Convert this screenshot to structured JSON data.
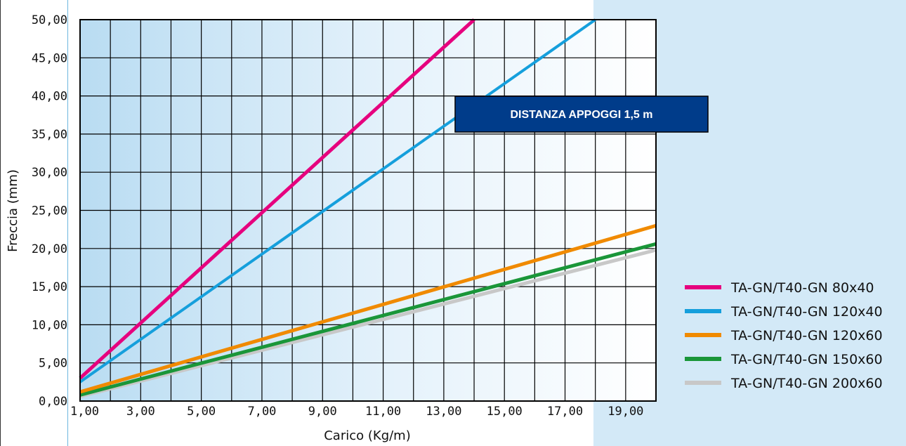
{
  "chart_data": {
    "type": "line",
    "title": "",
    "xlabel": "Carico (Kg/m)",
    "ylabel": "Freccia (mm)",
    "xlim": [
      1,
      20
    ],
    "ylim": [
      0,
      50
    ],
    "x_ticks": [
      "1,00",
      "3,00",
      "5,00",
      "7,00",
      "9,00",
      "11,00",
      "13,00",
      "15,00",
      "17,00",
      "19,00"
    ],
    "y_ticks": [
      "0,00",
      "5,00",
      "10,00",
      "15,00",
      "20,00",
      "25,00",
      "30,00",
      "35,00",
      "40,00",
      "45,00",
      "50,00"
    ],
    "grid": true,
    "legend_position": "right",
    "annotation": "DISTANZA APPOGGI 1,5 m",
    "series": [
      {
        "name": "TA-GN/T40-GN 80x40",
        "color": "#e6007e",
        "x": [
          1,
          14
        ],
        "y": [
          3.0,
          50.0
        ]
      },
      {
        "name": "TA-GN/T40-GN 120x40",
        "color": "#159fdc",
        "x": [
          1,
          18
        ],
        "y": [
          2.5,
          50.0
        ]
      },
      {
        "name": "TA-GN/T40-GN 120x60",
        "color": "#f08a00",
        "x": [
          1,
          20
        ],
        "y": [
          1.2,
          23.0
        ]
      },
      {
        "name": "TA-GN/T40-GN 150x60",
        "color": "#1a9639",
        "x": [
          1,
          20
        ],
        "y": [
          0.8,
          20.6
        ]
      },
      {
        "name": "TA-GN/T40-GN 200x60",
        "color": "#c8c8c8",
        "x": [
          1,
          20
        ],
        "y": [
          0.6,
          19.8
        ]
      }
    ]
  }
}
